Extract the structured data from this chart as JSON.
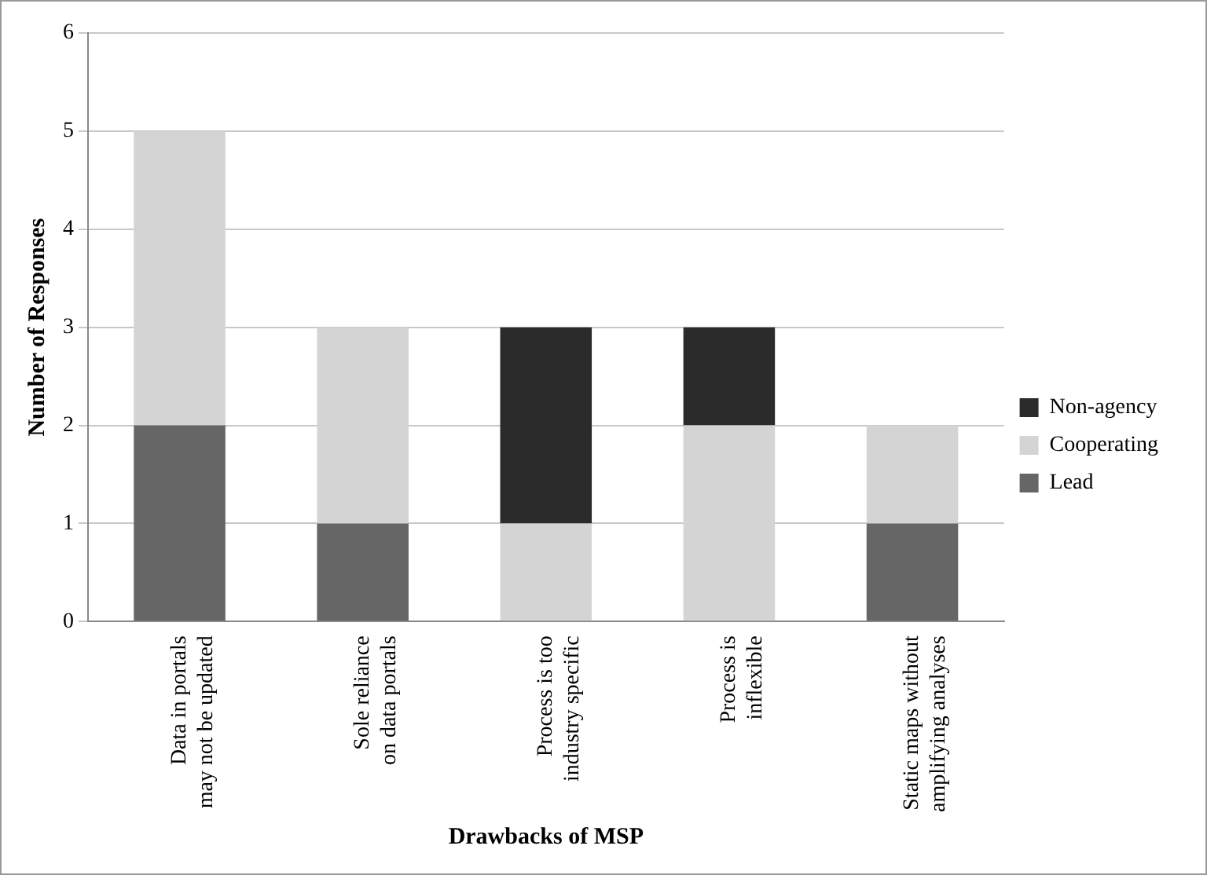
{
  "chart_data": {
    "type": "bar",
    "stacked": true,
    "xlabel": "Drawbacks of MSP",
    "ylabel": "Number of Responses",
    "categories": [
      "Data in portals may not be updated",
      "Sole reliance on data portals",
      "Process is too industry specific",
      "Process is inflexible",
      "Static maps without amplifying analyses"
    ],
    "series": [
      {
        "name": "Lead",
        "color": "#666666",
        "values": [
          2,
          1,
          0,
          0,
          1
        ]
      },
      {
        "name": "Cooperating",
        "color": "#d4d4d4",
        "values": [
          3,
          2,
          1,
          2,
          1
        ]
      },
      {
        "name": "Non-agency",
        "color": "#2b2b2b",
        "values": [
          0,
          0,
          2,
          1,
          0
        ]
      }
    ],
    "ylim": [
      0,
      6
    ],
    "yticks": [
      0,
      1,
      2,
      3,
      4,
      5,
      6
    ],
    "grid": "y",
    "legend": "right"
  }
}
